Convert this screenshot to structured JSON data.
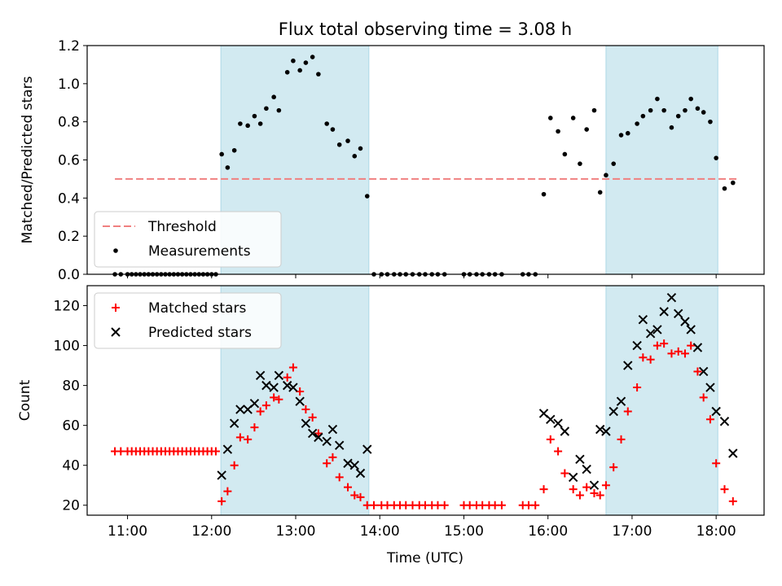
{
  "chart_data": {
    "type": "scatter",
    "title": "Flux total observing time = 3.08 h",
    "xlabel": "Time (UTC)",
    "x_unit": "hours (UTC)",
    "x_ticks": [
      {
        "value": 11,
        "label": "11:00"
      },
      {
        "value": 12,
        "label": "12:00"
      },
      {
        "value": 13,
        "label": "13:00"
      },
      {
        "value": 14,
        "label": "14:00"
      },
      {
        "value": 15,
        "label": "15:00"
      },
      {
        "value": 16,
        "label": "16:00"
      },
      {
        "value": 17,
        "label": "17:00"
      },
      {
        "value": 18,
        "label": "18:00"
      }
    ],
    "xlim": [
      10.52,
      18.57
    ],
    "observing_windows": [
      [
        12.11,
        13.87
      ],
      [
        16.69,
        18.02
      ]
    ],
    "window_color": "#add8e6",
    "panels": [
      {
        "id": "ratio",
        "ylabel": "Matched/Predicted stars",
        "ylim": [
          0,
          1.2
        ],
        "yticks": [
          "0.0",
          "0.2",
          "0.4",
          "0.6",
          "0.8",
          "1.0",
          "1.2"
        ],
        "legend": {
          "location": "lower-left",
          "entries": [
            "Threshold",
            "Measurements"
          ]
        },
        "threshold": {
          "name": "Threshold",
          "value": 0.5,
          "x_range": [
            10.85,
            18.25
          ],
          "color": "#f08080"
        },
        "series": [
          {
            "name": "Measurements",
            "marker": "dot",
            "color": "#000000",
            "x": [
              10.85,
              10.92,
              11.0,
              11.05,
              11.1,
              11.15,
              11.2,
              11.25,
              11.3,
              11.35,
              11.4,
              11.45,
              11.5,
              11.55,
              11.6,
              11.65,
              11.7,
              11.75,
              11.8,
              11.85,
              11.9,
              11.95,
              12.0,
              12.05,
              12.12,
              12.19,
              12.27,
              12.34,
              12.43,
              12.51,
              12.58,
              12.65,
              12.74,
              12.8,
              12.9,
              12.97,
              13.05,
              13.12,
              13.2,
              13.27,
              13.37,
              13.44,
              13.52,
              13.62,
              13.7,
              13.77,
              13.85,
              13.93,
              14.02,
              14.09,
              14.17,
              14.24,
              14.31,
              14.39,
              14.47,
              14.54,
              14.62,
              14.69,
              14.77,
              15.0,
              15.07,
              15.15,
              15.22,
              15.3,
              15.37,
              15.45,
              15.7,
              15.77,
              15.85,
              15.95,
              16.03,
              16.12,
              16.2,
              16.3,
              16.38,
              16.46,
              16.55,
              16.62,
              16.69,
              16.78,
              16.87,
              16.95,
              17.06,
              17.13,
              17.22,
              17.3,
              17.38,
              17.47,
              17.55,
              17.63,
              17.7,
              17.78,
              17.85,
              17.93,
              18.0,
              18.1,
              18.2
            ],
            "y": [
              0,
              0,
              0,
              0,
              0,
              0,
              0,
              0,
              0,
              0,
              0,
              0,
              0,
              0,
              0,
              0,
              0,
              0,
              0,
              0,
              0,
              0,
              0,
              0,
              0.63,
              0.56,
              0.65,
              0.79,
              0.78,
              0.83,
              0.79,
              0.87,
              0.93,
              0.86,
              1.06,
              1.12,
              1.07,
              1.11,
              1.14,
              1.05,
              0.79,
              0.76,
              0.68,
              0.7,
              0.62,
              0.66,
              0.41,
              0,
              0,
              0,
              0,
              0,
              0,
              0,
              0,
              0,
              0,
              0,
              0,
              0,
              0,
              0,
              0,
              0,
              0,
              0,
              0,
              0,
              0,
              0.42,
              0.82,
              0.75,
              0.63,
              0.82,
              0.58,
              0.76,
              0.86,
              0.43,
              0.52,
              0.58,
              0.73,
              0.74,
              0.79,
              0.83,
              0.86,
              0.92,
              0.86,
              0.77,
              0.83,
              0.86,
              0.92,
              0.87,
              0.85,
              0.8,
              0.61,
              0.45,
              0.48
            ]
          }
        ]
      },
      {
        "id": "counts",
        "ylabel": "Count",
        "ylim": [
          15,
          130
        ],
        "yticks": [
          "20",
          "40",
          "60",
          "80",
          "100",
          "120"
        ],
        "legend": {
          "location": "upper-left",
          "entries": [
            "Matched stars",
            "Predicted stars"
          ]
        },
        "series": [
          {
            "name": "Matched stars",
            "marker": "plus",
            "color": "#ff0000",
            "x": [
              10.85,
              10.92,
              11.0,
              11.05,
              11.1,
              11.15,
              11.2,
              11.25,
              11.3,
              11.35,
              11.4,
              11.45,
              11.5,
              11.55,
              11.6,
              11.65,
              11.7,
              11.75,
              11.8,
              11.85,
              11.9,
              11.95,
              12.0,
              12.05,
              12.12,
              12.19,
              12.27,
              12.34,
              12.43,
              12.51,
              12.58,
              12.65,
              12.74,
              12.8,
              12.9,
              12.97,
              13.05,
              13.12,
              13.2,
              13.27,
              13.37,
              13.44,
              13.52,
              13.62,
              13.7,
              13.77,
              13.85,
              13.93,
              14.02,
              14.09,
              14.17,
              14.24,
              14.31,
              14.39,
              14.47,
              14.54,
              14.62,
              14.69,
              14.77,
              15.0,
              15.07,
              15.15,
              15.22,
              15.3,
              15.37,
              15.45,
              15.7,
              15.77,
              15.85,
              15.95,
              16.03,
              16.12,
              16.2,
              16.3,
              16.38,
              16.46,
              16.55,
              16.62,
              16.69,
              16.78,
              16.87,
              16.95,
              17.06,
              17.13,
              17.22,
              17.3,
              17.38,
              17.47,
              17.55,
              17.63,
              17.7,
              17.78,
              17.85,
              17.93,
              18.0,
              18.1,
              18.2
            ],
            "y": [
              47,
              47,
              47,
              47,
              47,
              47,
              47,
              47,
              47,
              47,
              47,
              47,
              47,
              47,
              47,
              47,
              47,
              47,
              47,
              47,
              47,
              47,
              47,
              47,
              22,
              27,
              40,
              54,
              53,
              59,
              67,
              70,
              74,
              73,
              84,
              89,
              77,
              68,
              64,
              56,
              41,
              44,
              34,
              29,
              25,
              24,
              20,
              20,
              20,
              20,
              20,
              20,
              20,
              20,
              20,
              20,
              20,
              20,
              20,
              20,
              20,
              20,
              20,
              20,
              20,
              20,
              20,
              20,
              20,
              28,
              53,
              47,
              36,
              28,
              25,
              29,
              26,
              25,
              30,
              39,
              53,
              67,
              79,
              94,
              93,
              100,
              101,
              96,
              97,
              96,
              100,
              87,
              74,
              63,
              41,
              28,
              22
            ]
          },
          {
            "name": "Predicted stars",
            "marker": "cross",
            "color": "#000000",
            "x": [
              12.12,
              12.19,
              12.27,
              12.34,
              12.43,
              12.51,
              12.58,
              12.65,
              12.74,
              12.8,
              12.9,
              12.97,
              13.05,
              13.12,
              13.2,
              13.27,
              13.37,
              13.44,
              13.52,
              13.62,
              13.7,
              13.77,
              13.85,
              15.95,
              16.03,
              16.12,
              16.2,
              16.3,
              16.38,
              16.46,
              16.55,
              16.62,
              16.69,
              16.78,
              16.87,
              16.95,
              17.06,
              17.13,
              17.22,
              17.3,
              17.38,
              17.47,
              17.55,
              17.63,
              17.7,
              17.78,
              17.85,
              17.93,
              18.0,
              18.1,
              18.2
            ],
            "y": [
              35,
              48,
              61,
              68,
              68,
              71,
              85,
              80,
              79,
              85,
              80,
              79,
              72,
              61,
              56,
              54,
              52,
              58,
              50,
              41,
              40,
              36,
              48,
              66,
              63,
              61,
              57,
              34,
              43,
              38,
              30,
              58,
              57,
              67,
              72,
              90,
              100,
              113,
              106,
              108,
              117,
              124,
              116,
              112,
              108,
              99,
              87,
              79,
              67,
              62,
              46
            ]
          }
        ]
      }
    ]
  }
}
